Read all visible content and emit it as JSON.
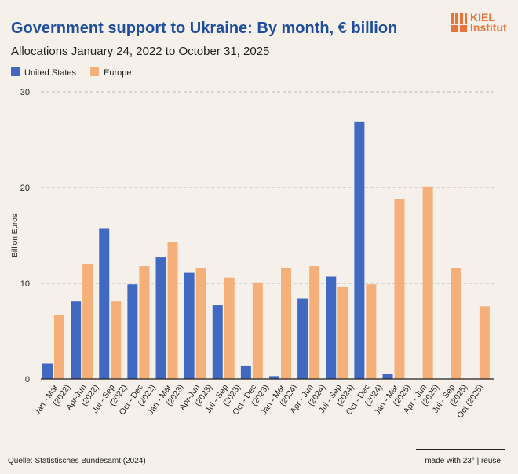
{
  "title": "Government support to Ukraine: By month, € billion",
  "subtitle": "Allocations January 24, 2022 to October 31, 2025",
  "logo": {
    "line1": "KIEL",
    "line2": "Institut"
  },
  "footer": {
    "source": "Quelle: Statistisches Bundesamt (2024)",
    "credit": "made with 23° | reuse"
  },
  "colors": {
    "United States": "#4169c1",
    "Europe": "#f5b07a",
    "grid": "#bbbbbb"
  },
  "chart_data": {
    "type": "bar",
    "ylabel": "Billion Euros",
    "ylim": [
      0,
      30
    ],
    "yticks": [
      0,
      10,
      20,
      30
    ],
    "grid": true,
    "legend": "top-left",
    "categories": [
      [
        "Jan - Mar",
        "(2022)"
      ],
      [
        "Apr-Jun",
        "(2022)"
      ],
      [
        "Jul - Sep",
        "(2022)"
      ],
      [
        "Oct - Dec",
        "(2022)"
      ],
      [
        "Jan - Mar",
        "(2023)"
      ],
      [
        "Apr-Jun",
        "(2023)"
      ],
      [
        "Jul - Sep",
        "(2023)"
      ],
      [
        "Oct - Dec",
        "(2023)"
      ],
      [
        "Jan - Mar",
        "(2024)"
      ],
      [
        "Apr - Jun",
        "(2024)"
      ],
      [
        "Jul - Sep",
        "(2024)"
      ],
      [
        "Oct - Dec",
        "(2024)"
      ],
      [
        "Jan - Mar",
        "(2025)"
      ],
      [
        "Apr - Jun",
        "(2025)"
      ],
      [
        "Jul - Sep",
        "(2025)"
      ],
      [
        "Oct (2025)",
        ""
      ]
    ],
    "series": [
      {
        "name": "United States",
        "values": [
          1.6,
          8.1,
          15.7,
          9.9,
          12.7,
          11.1,
          7.7,
          1.4,
          0.3,
          8.4,
          10.7,
          26.9,
          0.5,
          0,
          0,
          0
        ]
      },
      {
        "name": "Europe",
        "values": [
          6.7,
          12.0,
          8.1,
          11.8,
          14.3,
          11.6,
          10.6,
          10.1,
          11.6,
          11.8,
          9.6,
          9.9,
          18.8,
          20.1,
          11.6,
          7.6
        ]
      }
    ]
  }
}
